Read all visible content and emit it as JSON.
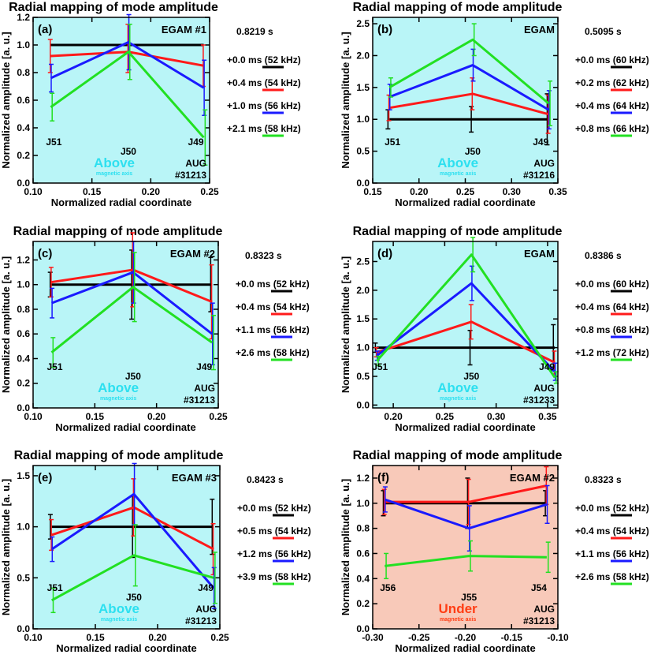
{
  "figure": {
    "colors": {
      "black": "#000000",
      "red": "#ff1a1a",
      "blue": "#1a1aff",
      "green": "#22e022",
      "panel_bg_cyan": "#b9f5f7",
      "panel_bg_salmon": "#f8c9b9",
      "above_text": "#2de0f0",
      "under_text": "#ff3d14"
    }
  },
  "chart_data": [
    {
      "type": "line",
      "title": "Radial mapping of mode amplitude",
      "panel_label": "(a)",
      "mode": "EGAM #1",
      "time": "0.8219 s",
      "xlabel": "Normalized radial coordinate",
      "ylabel": "Normalized amplitude [a. u.]",
      "xlim": [
        0.1,
        0.25
      ],
      "ylim": [
        0.0,
        1.2
      ],
      "xticks": [
        "0.10",
        "0.15",
        "0.20",
        "0.25"
      ],
      "yticks": [
        "0.0",
        "0.2",
        "0.4",
        "0.6",
        "0.8",
        "1.0",
        "1.2"
      ],
      "x": [
        0.115,
        0.181,
        0.245
      ],
      "probes": [
        "J51",
        "J50",
        "J49"
      ],
      "location": "Above",
      "location_sub": "magnetic axis",
      "shot": [
        "AUG",
        "#31213"
      ],
      "background": "cyan",
      "series": [
        {
          "name": "+0.0 ms (52 kHz)",
          "color": "black",
          "values": [
            1.0,
            1.0,
            1.0
          ],
          "err": [
            [
              0,
              0
            ],
            [
              0,
              0
            ],
            [
              0,
              0
            ]
          ]
        },
        {
          "name": "+0.4 ms (54 kHz)",
          "color": "red",
          "values": [
            0.92,
            0.95,
            0.85
          ],
          "err": [
            [
              0.12,
              0.12
            ],
            [
              0.15,
              0.2
            ],
            [
              0.15,
              0.15
            ]
          ]
        },
        {
          "name": "+1.0 ms (56 kHz)",
          "color": "blue",
          "values": [
            0.76,
            1.02,
            0.69
          ],
          "err": [
            [
              0.1,
              0.1
            ],
            [
              0.2,
              0.2
            ],
            [
              0.2,
              0.2
            ]
          ]
        },
        {
          "name": "+2.1 ms (58 kHz)",
          "color": "green",
          "values": [
            0.55,
            0.95,
            0.33
          ],
          "err": [
            [
              0.1,
              0.1
            ],
            [
              0.2,
              0.2
            ],
            [
              0.2,
              0.2
            ]
          ]
        }
      ]
    },
    {
      "type": "line",
      "title": "Radial mapping of mode amplitude",
      "panel_label": "(b)",
      "mode": "EGAM",
      "time": "0.5095 s",
      "xlabel": "Normalized radial coordinate",
      "ylabel": "Normalized amplitude [a. u.]",
      "xlim": [
        0.15,
        0.35
      ],
      "ylim": [
        0.0,
        2.6
      ],
      "xticks": [
        "0.15",
        "0.20",
        "0.25",
        "0.30",
        "0.35"
      ],
      "yticks": [
        "0.0",
        "0.5",
        "1.0",
        "1.5",
        "2.0",
        "2.5"
      ],
      "x": [
        0.168,
        0.258,
        0.34
      ],
      "probes": [
        "J51",
        "J50",
        "J49"
      ],
      "location": "Above",
      "location_sub": "magnetic axis",
      "shot": [
        "AUG",
        "#31216"
      ],
      "background": "cyan",
      "series": [
        {
          "name": "+0.0 ms (60 kHz)",
          "color": "black",
          "values": [
            1.0,
            1.0,
            1.0
          ],
          "err": [
            [
              0.15,
              0.15
            ],
            [
              0.2,
              0.2
            ],
            [
              0.4,
              0.4
            ]
          ]
        },
        {
          "name": "+0.2 ms (62 kHz)",
          "color": "red",
          "values": [
            1.18,
            1.4,
            1.08
          ],
          "err": [
            [
              0.2,
              0.2
            ],
            [
              0.25,
              0.25
            ],
            [
              0.3,
              0.3
            ]
          ]
        },
        {
          "name": "+0.4 ms (64 kHz)",
          "color": "blue",
          "values": [
            1.35,
            1.85,
            1.15
          ],
          "err": [
            [
              0.2,
              0.2
            ],
            [
              0.25,
              0.25
            ],
            [
              0.3,
              0.3
            ]
          ]
        },
        {
          "name": "+0.8 ms (66 kHz)",
          "color": "green",
          "values": [
            1.5,
            2.25,
            1.25
          ],
          "err": [
            [
              0.15,
              0.15
            ],
            [
              0.25,
              0.25
            ],
            [
              0.35,
              0.35
            ]
          ]
        }
      ]
    },
    {
      "type": "line",
      "title": "Radial mapping of mode amplitude",
      "panel_label": "(c)",
      "mode": "EGAM #2",
      "time": "0.8323 s",
      "xlabel": "Normalized radial coordinate",
      "ylabel": "Normalized amplitude [a. u.]",
      "xlim": [
        0.1,
        0.25
      ],
      "ylim": [
        0.0,
        1.35
      ],
      "xticks": [
        "0.10",
        "0.15",
        "0.20",
        "0.25"
      ],
      "yticks": [
        "0.0",
        "0.2",
        "0.4",
        "0.6",
        "0.8",
        "1.0",
        "1.2"
      ],
      "x": [
        0.115,
        0.181,
        0.245
      ],
      "probes": [
        "J51",
        "J50",
        "J49"
      ],
      "location": "Above",
      "location_sub": "magnetic axis",
      "shot": [
        "AUG",
        "#31213"
      ],
      "background": "cyan",
      "series": [
        {
          "name": "+0.0 ms (52 kHz)",
          "color": "black",
          "values": [
            1.0,
            1.0,
            1.0
          ],
          "err": [
            [
              0.1,
              0.1
            ],
            [
              0.28,
              0.28
            ],
            [
              0.22,
              0.22
            ]
          ]
        },
        {
          "name": "+0.4 ms (54 kHz)",
          "color": "red",
          "values": [
            1.02,
            1.12,
            0.86
          ],
          "err": [
            [
              0.12,
              0.12
            ],
            [
              0.3,
              0.3
            ],
            [
              0.3,
              0.3
            ]
          ]
        },
        {
          "name": "+1.1 ms (56 kHz)",
          "color": "blue",
          "values": [
            0.85,
            1.1,
            0.6
          ],
          "err": [
            [
              0.12,
              0.12
            ],
            [
              0.25,
              0.25
            ],
            [
              0.25,
              0.25
            ]
          ]
        },
        {
          "name": "+2.6 ms (58 kHz)",
          "color": "green",
          "values": [
            0.45,
            0.98,
            0.53
          ],
          "err": [
            [
              0.12,
              0.12
            ],
            [
              0.28,
              0.28
            ],
            [
              0.22,
              0.22
            ]
          ]
        }
      ]
    },
    {
      "type": "line",
      "title": "Radial mapping of mode amplitude",
      "panel_label": "(d)",
      "mode": "EGAM",
      "time": "0.8386 s",
      "xlabel": "Normalized radial coordinate",
      "ylabel": "Normalized amplitude [a. u.]",
      "xlim": [
        0.18,
        0.36
      ],
      "ylim": [
        -0.05,
        2.85
      ],
      "xticks": [
        "0.20",
        "0.25",
        "0.30",
        "0.35"
      ],
      "yticks": [
        "0.0",
        "0.5",
        "1.0",
        "1.5",
        "2.0",
        "2.5"
      ],
      "x": [
        0.184,
        0.276,
        0.357
      ],
      "probes": [
        "J51",
        "J50",
        "J49"
      ],
      "location": "Above",
      "location_sub": "magnetic axis",
      "shot": [
        "AUG",
        "#31233"
      ],
      "background": "cyan",
      "series": [
        {
          "name": "+0.0 ms (60 kHz)",
          "color": "black",
          "values": [
            1.0,
            1.0,
            1.0
          ],
          "err": [
            [
              0.08,
              0.08
            ],
            [
              0.3,
              0.3
            ],
            [
              0.4,
              0.4
            ]
          ]
        },
        {
          "name": "+0.4 ms (64 kHz)",
          "color": "red",
          "values": [
            0.92,
            1.45,
            0.74
          ],
          "err": [
            [
              0.08,
              0.08
            ],
            [
              0.3,
              0.3
            ],
            [
              0.2,
              0.2
            ]
          ]
        },
        {
          "name": "+0.8 ms (68 kHz)",
          "color": "blue",
          "values": [
            0.86,
            2.12,
            0.58
          ],
          "err": [
            [
              0.08,
              0.08
            ],
            [
              0.3,
              0.3
            ],
            [
              0.15,
              0.15
            ]
          ]
        },
        {
          "name": "+1.2 ms (72 kHz)",
          "color": "green",
          "values": [
            0.77,
            2.62,
            0.48
          ],
          "err": [
            [
              0.08,
              0.08
            ],
            [
              0.3,
              0.3
            ],
            [
              0.1,
              0.1
            ]
          ]
        }
      ]
    },
    {
      "type": "line",
      "title": "Radial mapping of mode amplitude",
      "panel_label": "(e)",
      "mode": "EGAM #3",
      "time": "0.8423 s",
      "xlabel": "Normalized radial coordinate",
      "ylabel": "Normalized amplitude [a. u.]",
      "xlim": [
        0.1,
        0.25
      ],
      "ylim": [
        0.0,
        1.6
      ],
      "xticks": [
        "0.10",
        "0.15",
        "0.20",
        "0.25"
      ],
      "yticks": [
        "0.0",
        "0.5",
        "1.0",
        "1.5"
      ],
      "x": [
        0.115,
        0.181,
        0.245
      ],
      "probes": [
        "J51",
        "J50",
        "J49"
      ],
      "location": "Above",
      "location_sub": "magnetic axis",
      "shot": [
        "AUG",
        "#31213"
      ],
      "background": "cyan",
      "series": [
        {
          "name": "+0.0 ms (52 kHz)",
          "color": "black",
          "values": [
            1.0,
            1.0,
            1.0
          ],
          "err": [
            [
              0.12,
              0.12
            ],
            [
              0.3,
              0.3
            ],
            [
              0.27,
              0.27
            ]
          ]
        },
        {
          "name": "+0.5 ms (54 kHz)",
          "color": "red",
          "values": [
            0.92,
            1.19,
            0.78
          ],
          "err": [
            [
              0.15,
              0.15
            ],
            [
              0.28,
              0.28
            ],
            [
              0.25,
              0.25
            ]
          ]
        },
        {
          "name": "+1.2 ms (56 kHz)",
          "color": "blue",
          "values": [
            0.78,
            1.32,
            0.4
          ],
          "err": [
            [
              0.12,
              0.12
            ],
            [
              0.3,
              0.3
            ],
            [
              0.2,
              0.2
            ]
          ]
        },
        {
          "name": "+3.9 ms (58 kHz)",
          "color": "green",
          "values": [
            0.28,
            0.72,
            0.5
          ],
          "err": [
            [
              0.12,
              0.12
            ],
            [
              0.3,
              0.3
            ],
            [
              0.25,
              0.25
            ]
          ]
        }
      ]
    },
    {
      "type": "line",
      "title": "Radial mapping of mode amplitude",
      "panel_label": "(f)",
      "mode": "EGAM #2",
      "time": "0.8323 s",
      "xlabel": "Normalized radial coordinate",
      "ylabel": "Normalized amplitude [a. u.]",
      "xlim": [
        -0.3,
        -0.1
      ],
      "ylim": [
        0.0,
        1.3
      ],
      "xticks": [
        "-0.30",
        "-0.25",
        "-0.20",
        "-0.15",
        "-0.10"
      ],
      "yticks": [
        "0.0",
        "0.2",
        "0.4",
        "0.6",
        "0.8",
        "1.0",
        "1.2"
      ],
      "x": [
        -0.287,
        -0.196,
        -0.112
      ],
      "probes": [
        "J56",
        "J55",
        "J54"
      ],
      "location": "Under",
      "location_sub": "magnetic axis",
      "shot": [
        "AUG",
        "#31213"
      ],
      "background": "salmon",
      "series": [
        {
          "name": "+0.0 ms (52 kHz)",
          "color": "black",
          "values": [
            1.0,
            1.0,
            1.0
          ],
          "err": [
            [
              0.1,
              0.1
            ],
            [
              0.2,
              0.2
            ],
            [
              0.1,
              0.1
            ]
          ]
        },
        {
          "name": "+0.4 ms (54 kHz)",
          "color": "red",
          "values": [
            1.01,
            1.01,
            1.14
          ],
          "err": [
            [
              0.1,
              0.1
            ],
            [
              0.18,
              0.18
            ],
            [
              0.15,
              0.15
            ]
          ]
        },
        {
          "name": "+1.1 ms (56 kHz)",
          "color": "blue",
          "values": [
            1.03,
            0.8,
            0.99
          ],
          "err": [
            [
              0.1,
              0.1
            ],
            [
              0.18,
              0.18
            ],
            [
              0.15,
              0.15
            ]
          ]
        },
        {
          "name": "+2.6 ms (58 kHz)",
          "color": "green",
          "values": [
            0.5,
            0.58,
            0.57
          ],
          "err": [
            [
              0.1,
              0.1
            ],
            [
              0.12,
              0.12
            ],
            [
              0.12,
              0.12
            ]
          ]
        }
      ]
    }
  ]
}
